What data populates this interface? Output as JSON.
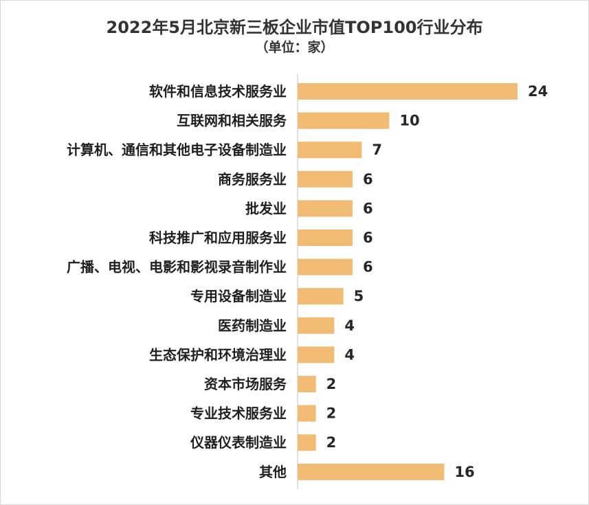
{
  "chart_data": {
    "type": "bar",
    "orientation": "horizontal",
    "title": "2022年5月北京新三板企业市值TOP100行业分布",
    "subtitle": "（单位：家）",
    "categories": [
      "软件和信息技术服务业",
      "互联网和相关服务",
      "计算机、通信和其他电子设备制造业",
      "商务服务业",
      "批发业",
      "科技推广和应用服务业",
      "广播、电视、电影和影视录音制作业",
      "专用设备制造业",
      "医药制造业",
      "生态保护和环境治理业",
      "资本市场服务",
      "专业技术服务业",
      "仪器仪表制造业",
      "其他"
    ],
    "values": [
      24,
      10,
      7,
      6,
      6,
      6,
      6,
      5,
      4,
      4,
      2,
      2,
      2,
      16
    ],
    "xlim": [
      0,
      24
    ],
    "grid": false,
    "legend": "none",
    "data_labels": true,
    "bar_color": "#f2bb73",
    "axis_color": "#bfbfbf"
  }
}
